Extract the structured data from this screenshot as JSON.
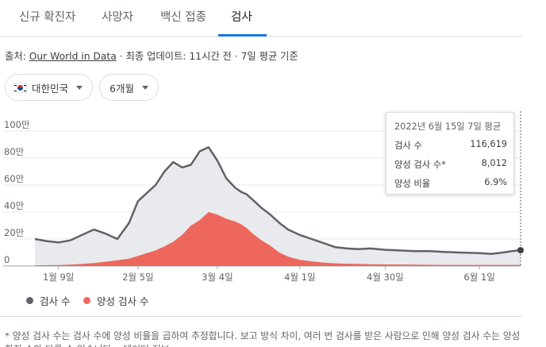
{
  "tabs": [
    {
      "label": "신규 확진자"
    },
    {
      "label": "사망자"
    },
    {
      "label": "백신 접종"
    },
    {
      "label": "검사"
    }
  ],
  "active_tab": "검사",
  "source": {
    "prefix": "출처:",
    "link": "Our World in Data",
    "suffix": "· 최종 업데이트: 11시간 전 · 7일 평균 기준"
  },
  "filters": {
    "country": "대한민국",
    "period": "6개월"
  },
  "icons": {
    "country_flag": "korea-flag-icon",
    "dropdown": "caret-down-icon",
    "legend_dot": "circle-icon"
  },
  "colors": {
    "tests_line": "#5f6368",
    "tests_area": "#e8eaed",
    "positive": "#ee675c",
    "tab_indicator": "#1a73e8"
  },
  "tooltip": {
    "date": "2022년 6월 15일 7일 평균",
    "rows": [
      {
        "label": "검사 수",
        "value": "116,619"
      },
      {
        "label": "양성 검사 수*",
        "value": "8,012"
      },
      {
        "label": "양성 비율",
        "value": "6.9%"
      }
    ]
  },
  "legend": [
    {
      "label": "검사 수",
      "color": "#5f6368"
    },
    {
      "label": "양성 검사 수",
      "color": "#ee675c"
    }
  ],
  "footnote": "* 양성 검사 수는 검사 수에 양성 비율을 곱하여 추정합니다. 보고 방식 차이, 여러 번 검사를 받은 사람으로 인해 양성 검사 수는 양성 확진 수와 다를 수 있습니다. · 데이터 정보",
  "chart_data": {
    "type": "area",
    "x": [
      "2022-01-01",
      "2022-01-05",
      "2022-01-09",
      "2022-01-13",
      "2022-01-17",
      "2022-01-21",
      "2022-01-25",
      "2022-01-29",
      "2022-02-02",
      "2022-02-05",
      "2022-02-08",
      "2022-02-11",
      "2022-02-14",
      "2022-02-17",
      "2022-02-20",
      "2022-02-23",
      "2022-02-26",
      "2022-03-01",
      "2022-03-04",
      "2022-03-07",
      "2022-03-10",
      "2022-03-12",
      "2022-03-14",
      "2022-03-16",
      "2022-03-19",
      "2022-03-22",
      "2022-03-25",
      "2022-03-28",
      "2022-04-01",
      "2022-04-05",
      "2022-04-09",
      "2022-04-13",
      "2022-04-17",
      "2022-04-21",
      "2022-04-25",
      "2022-04-30",
      "2022-05-05",
      "2022-05-10",
      "2022-05-15",
      "2022-05-20",
      "2022-05-25",
      "2022-06-01",
      "2022-06-05",
      "2022-06-09",
      "2022-06-12",
      "2022-06-15"
    ],
    "series": [
      {
        "name": "검사 수",
        "values": [
          20,
          18.5,
          17.5,
          19,
          23,
          27,
          24,
          20,
          32,
          48,
          54,
          60,
          70,
          77,
          73,
          75,
          85,
          88,
          78,
          65,
          58,
          55,
          53,
          49,
          43,
          38,
          32,
          27,
          23,
          20,
          17,
          14,
          13,
          12.5,
          13,
          12,
          11.5,
          11,
          11,
          10.5,
          10,
          9.5,
          9,
          10,
          11,
          11.7
        ]
      },
      {
        "name": "양성 검사 수",
        "values": [
          0.5,
          0.6,
          0.7,
          1,
          1.5,
          2.2,
          3.2,
          4.3,
          5.5,
          7.5,
          9.5,
          11.5,
          14.5,
          18,
          23,
          30,
          34,
          40,
          38,
          35,
          33,
          31,
          28,
          24,
          19,
          15,
          10,
          7,
          4.5,
          3.5,
          2.5,
          2,
          1.7,
          1.5,
          1.3,
          1.2,
          1.1,
          1,
          0.9,
          0.85,
          0.8,
          0.8,
          0.8,
          0.8,
          0.8,
          0.8
        ]
      }
    ],
    "xticks": [
      "1월 9일",
      "2월 5일",
      "3월 4일",
      "4월 1일",
      "4월 30일",
      "6월 1일"
    ],
    "yticks": [
      "0",
      "20만",
      "40만",
      "60만",
      "80만",
      "100만"
    ],
    "ylim": [
      0,
      100
    ],
    "grid": true,
    "legend": "bottom-left"
  }
}
